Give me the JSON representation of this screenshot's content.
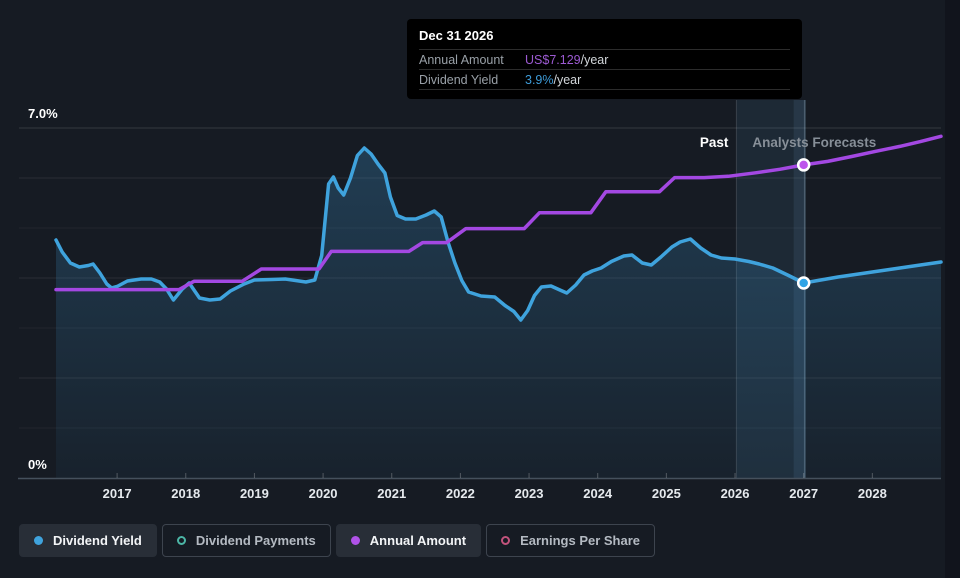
{
  "page": {
    "background": "#161b23"
  },
  "tooltip": {
    "title": "Dec 31 2026",
    "rows": [
      {
        "label": "Annual Amount",
        "value": "US$7.129",
        "suffix": "/year",
        "value_color": "#9c5ad2"
      },
      {
        "label": "Dividend Yield",
        "value": "3.9%",
        "suffix": "/year",
        "value_color": "#3d9bd8"
      }
    ]
  },
  "annotations": {
    "past": "Past",
    "forecast": "Analysts Forecasts"
  },
  "y_axis": {
    "top_label": "7.0%",
    "bottom_label": "0%"
  },
  "legend": [
    {
      "label": "Dividend Yield",
      "marker": "filled",
      "color": "#3fa3dd",
      "active": true
    },
    {
      "label": "Dividend Payments",
      "marker": "outline",
      "color": "#4cb6a6",
      "active": false
    },
    {
      "label": "Annual Amount",
      "marker": "filled",
      "color": "#b052e8",
      "active": true
    },
    {
      "label": "Earnings Per Share",
      "marker": "outline",
      "color": "#c2537c",
      "active": false
    }
  ],
  "chart_data": {
    "type": "line",
    "title": "Dividend history and forecast",
    "xlim": [
      2016.11,
      2029.0
    ],
    "x_ticks": [
      2017,
      2018,
      2019,
      2020,
      2021,
      2022,
      2023,
      2024,
      2025,
      2026,
      2027,
      2028
    ],
    "yield_axis": {
      "unit": "%",
      "min": 0,
      "max": 7,
      "top_label_value": 7.0
    },
    "amount_axis": {
      "unit": "US$/year",
      "min": 0,
      "max": 7.97
    },
    "forecast_start": 2026.02,
    "hover": {
      "x": 2027.0,
      "date": "Dec 31 2026",
      "yield": 3.9,
      "amount": 7.129
    },
    "grid": true,
    "series": [
      {
        "name": "Dividend Yield",
        "axis": "yield",
        "color": "#3fa3dd",
        "area": true,
        "points": [
          [
            2016.11,
            4.76
          ],
          [
            2016.2,
            4.52
          ],
          [
            2016.32,
            4.3
          ],
          [
            2016.45,
            4.22
          ],
          [
            2016.58,
            4.25
          ],
          [
            2016.65,
            4.28
          ],
          [
            2016.75,
            4.1
          ],
          [
            2016.85,
            3.88
          ],
          [
            2016.92,
            3.8
          ],
          [
            2017.0,
            3.83
          ],
          [
            2017.15,
            3.94
          ],
          [
            2017.35,
            3.98
          ],
          [
            2017.5,
            3.98
          ],
          [
            2017.62,
            3.92
          ],
          [
            2017.72,
            3.78
          ],
          [
            2017.82,
            3.56
          ],
          [
            2017.95,
            3.78
          ],
          [
            2018.05,
            3.9
          ],
          [
            2018.2,
            3.6
          ],
          [
            2018.35,
            3.56
          ],
          [
            2018.5,
            3.58
          ],
          [
            2018.65,
            3.74
          ],
          [
            2018.85,
            3.88
          ],
          [
            2019.0,
            3.96
          ],
          [
            2019.25,
            3.97
          ],
          [
            2019.45,
            3.98
          ],
          [
            2019.6,
            3.95
          ],
          [
            2019.75,
            3.92
          ],
          [
            2019.88,
            3.96
          ],
          [
            2019.98,
            4.45
          ],
          [
            2020.08,
            5.88
          ],
          [
            2020.15,
            6.02
          ],
          [
            2020.22,
            5.8
          ],
          [
            2020.3,
            5.66
          ],
          [
            2020.4,
            6.0
          ],
          [
            2020.5,
            6.45
          ],
          [
            2020.6,
            6.6
          ],
          [
            2020.7,
            6.48
          ],
          [
            2020.8,
            6.28
          ],
          [
            2020.9,
            6.1
          ],
          [
            2020.98,
            5.62
          ],
          [
            2021.08,
            5.25
          ],
          [
            2021.2,
            5.18
          ],
          [
            2021.35,
            5.18
          ],
          [
            2021.5,
            5.26
          ],
          [
            2021.62,
            5.34
          ],
          [
            2021.72,
            5.22
          ],
          [
            2021.82,
            4.72
          ],
          [
            2021.92,
            4.3
          ],
          [
            2022.02,
            3.95
          ],
          [
            2022.12,
            3.72
          ],
          [
            2022.3,
            3.64
          ],
          [
            2022.5,
            3.62
          ],
          [
            2022.65,
            3.45
          ],
          [
            2022.78,
            3.33
          ],
          [
            2022.88,
            3.16
          ],
          [
            2022.98,
            3.35
          ],
          [
            2023.08,
            3.65
          ],
          [
            2023.18,
            3.82
          ],
          [
            2023.32,
            3.84
          ],
          [
            2023.45,
            3.76
          ],
          [
            2023.55,
            3.7
          ],
          [
            2023.68,
            3.86
          ],
          [
            2023.8,
            4.06
          ],
          [
            2023.92,
            4.14
          ],
          [
            2024.05,
            4.2
          ],
          [
            2024.2,
            4.33
          ],
          [
            2024.38,
            4.44
          ],
          [
            2024.5,
            4.46
          ],
          [
            2024.65,
            4.3
          ],
          [
            2024.78,
            4.26
          ],
          [
            2024.92,
            4.42
          ],
          [
            2025.08,
            4.62
          ],
          [
            2025.2,
            4.72
          ],
          [
            2025.35,
            4.78
          ],
          [
            2025.5,
            4.6
          ],
          [
            2025.65,
            4.46
          ],
          [
            2025.8,
            4.4
          ],
          [
            2026.0,
            4.38
          ],
          [
            2026.2,
            4.33
          ],
          [
            2026.35,
            4.28
          ],
          [
            2026.55,
            4.2
          ],
          [
            2026.78,
            4.05
          ],
          [
            2027.0,
            3.9
          ],
          [
            2027.25,
            3.96
          ],
          [
            2027.5,
            4.02
          ],
          [
            2027.75,
            4.07
          ],
          [
            2028.0,
            4.12
          ],
          [
            2028.25,
            4.17
          ],
          [
            2028.5,
            4.22
          ],
          [
            2028.75,
            4.27
          ],
          [
            2029.0,
            4.32
          ]
        ]
      },
      {
        "name": "Annual Amount",
        "axis": "amount",
        "color": "#a348e2",
        "area": false,
        "points": [
          [
            2016.11,
            4.29
          ],
          [
            2017.9,
            4.29
          ],
          [
            2018.12,
            4.48
          ],
          [
            2018.82,
            4.48
          ],
          [
            2019.1,
            4.76
          ],
          [
            2019.94,
            4.76
          ],
          [
            2020.12,
            5.16
          ],
          [
            2021.25,
            5.16
          ],
          [
            2021.45,
            5.36
          ],
          [
            2021.8,
            5.36
          ],
          [
            2022.08,
            5.68
          ],
          [
            2022.93,
            5.68
          ],
          [
            2023.15,
            6.04
          ],
          [
            2023.9,
            6.04
          ],
          [
            2024.12,
            6.52
          ],
          [
            2024.9,
            6.52
          ],
          [
            2025.12,
            6.84
          ],
          [
            2025.55,
            6.84
          ],
          [
            2025.9,
            6.87
          ],
          [
            2026.3,
            6.95
          ],
          [
            2026.65,
            7.03
          ],
          [
            2027.0,
            7.129
          ],
          [
            2027.35,
            7.21
          ],
          [
            2027.7,
            7.32
          ],
          [
            2028.05,
            7.44
          ],
          [
            2028.4,
            7.55
          ],
          [
            2028.7,
            7.66
          ],
          [
            2029.0,
            7.78
          ]
        ]
      }
    ],
    "markers": [
      {
        "series": "Annual Amount",
        "x": 2027.0,
        "value": 7.129,
        "fill": "#bd54ec"
      },
      {
        "series": "Dividend Yield",
        "x": 2027.0,
        "value": 3.9,
        "fill": "#2fa4e6"
      }
    ]
  }
}
